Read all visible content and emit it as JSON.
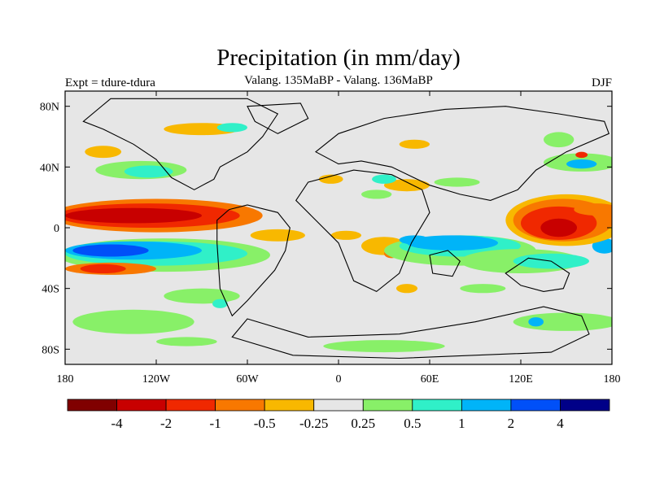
{
  "chart_data": {
    "type": "heatmap",
    "title": "Precipitation (in mm/day)",
    "subtitle": "Valang.  135MaBP - Valang.  136MaBP",
    "left_label": "Expt = tdure-tdura",
    "right_label": "DJF",
    "x_range": [
      -180,
      180
    ],
    "y_range": [
      -90,
      90
    ],
    "x_ticks": [
      {
        "value": -180,
        "label": "180"
      },
      {
        "value": -120,
        "label": "120W"
      },
      {
        "value": -60,
        "label": "60W"
      },
      {
        "value": 0,
        "label": "0"
      },
      {
        "value": 60,
        "label": "60E"
      },
      {
        "value": 120,
        "label": "120E"
      },
      {
        "value": 180,
        "label": "180"
      }
    ],
    "y_ticks": [
      {
        "value": 80,
        "label": "80N"
      },
      {
        "value": 40,
        "label": "40N"
      },
      {
        "value": 0,
        "label": "0"
      },
      {
        "value": -40,
        "label": "40S"
      },
      {
        "value": -80,
        "label": "80S"
      }
    ],
    "background_color": "#e6e6e6",
    "colorbar": {
      "colors": [
        "#800000",
        "#c80000",
        "#f02800",
        "#f87800",
        "#f8b800",
        "#e6e6e6",
        "#88f068",
        "#30f0c8",
        "#00b4f8",
        "#0050f8",
        "#000088"
      ],
      "labels": [
        "-4",
        "-2",
        "-1",
        "-0.5",
        "-0.25",
        "0.25",
        "0.5",
        "1",
        "2",
        "4"
      ]
    },
    "regions": [
      {
        "category": 4,
        "lon": -155,
        "lat": 50,
        "rlon": 12,
        "rlat": 4
      },
      {
        "category": 4,
        "lon": -90,
        "lat": 65,
        "rlon": 25,
        "rlat": 4
      },
      {
        "category": 7,
        "lon": -70,
        "lat": 66,
        "rlon": 10,
        "rlat": 3
      },
      {
        "category": 6,
        "lon": -130,
        "lat": 38,
        "rlon": 30,
        "rlat": 6
      },
      {
        "category": 7,
        "lon": -125,
        "lat": 37,
        "rlon": 16,
        "rlat": 4
      },
      {
        "category": 3,
        "lon": -120,
        "lat": 8,
        "rlon": 70,
        "rlat": 11
      },
      {
        "category": 2,
        "lon": -125,
        "lat": 8,
        "rlon": 60,
        "rlat": 8
      },
      {
        "category": 1,
        "lon": -135,
        "lat": 8,
        "rlon": 45,
        "rlat": 5
      },
      {
        "category": 6,
        "lon": -115,
        "lat": -18,
        "rlon": 70,
        "rlat": 11
      },
      {
        "category": 7,
        "lon": -120,
        "lat": -17,
        "rlon": 60,
        "rlat": 8
      },
      {
        "category": 8,
        "lon": -135,
        "lat": -15,
        "rlon": 45,
        "rlat": 6
      },
      {
        "category": 9,
        "lon": -150,
        "lat": -15,
        "rlon": 25,
        "rlat": 4
      },
      {
        "category": 3,
        "lon": -150,
        "lat": -27,
        "rlon": 30,
        "rlat": 4
      },
      {
        "category": 2,
        "lon": -155,
        "lat": -27,
        "rlon": 15,
        "rlat": 3
      },
      {
        "category": 6,
        "lon": -90,
        "lat": -45,
        "rlon": 25,
        "rlat": 5
      },
      {
        "category": 6,
        "lon": -135,
        "lat": -62,
        "rlon": 40,
        "rlat": 8
      },
      {
        "category": 7,
        "lon": -78,
        "lat": -50,
        "rlon": 5,
        "rlat": 3
      },
      {
        "category": 4,
        "lon": -40,
        "lat": -5,
        "rlon": 18,
        "rlat": 4
      },
      {
        "category": 4,
        "lon": 5,
        "lat": -5,
        "rlon": 10,
        "rlat": 3
      },
      {
        "category": 4,
        "lon": 30,
        "lat": -12,
        "rlon": 15,
        "rlat": 6
      },
      {
        "category": 3,
        "lon": 35,
        "lat": -17,
        "rlon": 5,
        "rlat": 3
      },
      {
        "category": 4,
        "lon": 45,
        "lat": 28,
        "rlon": 15,
        "rlat": 4
      },
      {
        "category": 4,
        "lon": -5,
        "lat": 32,
        "rlon": 8,
        "rlat": 3
      },
      {
        "category": 7,
        "lon": 30,
        "lat": 32,
        "rlon": 8,
        "rlat": 3
      },
      {
        "category": 6,
        "lon": 25,
        "lat": 22,
        "rlon": 10,
        "rlat": 3
      },
      {
        "category": 6,
        "lon": 78,
        "lat": 30,
        "rlon": 15,
        "rlat": 3
      },
      {
        "category": 4,
        "lon": 50,
        "lat": 55,
        "rlon": 10,
        "rlat": 3
      },
      {
        "category": 6,
        "lon": 80,
        "lat": -15,
        "rlon": 50,
        "rlat": 10
      },
      {
        "category": 7,
        "lon": 80,
        "lat": -12,
        "rlon": 40,
        "rlat": 7
      },
      {
        "category": 8,
        "lon": 75,
        "lat": -10,
        "rlon": 30,
        "rlat": 5
      },
      {
        "category": 8,
        "lon": 50,
        "lat": -8,
        "rlon": 10,
        "rlat": 3
      },
      {
        "category": 6,
        "lon": 120,
        "lat": -22,
        "rlon": 40,
        "rlat": 8
      },
      {
        "category": 7,
        "lon": 140,
        "lat": -22,
        "rlon": 25,
        "rlat": 5
      },
      {
        "category": 8,
        "lon": 175,
        "lat": -12,
        "rlon": 8,
        "rlat": 5
      },
      {
        "category": 4,
        "lon": 150,
        "lat": 5,
        "rlon": 40,
        "rlat": 17
      },
      {
        "category": 3,
        "lon": 148,
        "lat": 5,
        "rlon": 33,
        "rlat": 14
      },
      {
        "category": 2,
        "lon": 145,
        "lat": 3,
        "rlon": 25,
        "rlat": 11
      },
      {
        "category": 1,
        "lon": 145,
        "lat": 0,
        "rlon": 12,
        "rlat": 6
      },
      {
        "category": 3,
        "lon": 170,
        "lat": 12,
        "rlon": 15,
        "rlat": 4
      },
      {
        "category": 6,
        "lon": 160,
        "lat": 43,
        "rlon": 25,
        "rlat": 6
      },
      {
        "category": 8,
        "lon": 160,
        "lat": 42,
        "rlon": 10,
        "rlat": 3
      },
      {
        "category": 2,
        "lon": 160,
        "lat": 48,
        "rlon": 4,
        "rlat": 2
      },
      {
        "category": 6,
        "lon": 145,
        "lat": 58,
        "rlon": 10,
        "rlat": 5
      },
      {
        "category": 6,
        "lon": 150,
        "lat": -62,
        "rlon": 35,
        "rlat": 6
      },
      {
        "category": 8,
        "lon": 130,
        "lat": -62,
        "rlon": 5,
        "rlat": 3
      },
      {
        "category": 4,
        "lon": 45,
        "lat": -40,
        "rlon": 7,
        "rlat": 3
      },
      {
        "category": 6,
        "lon": 30,
        "lat": -78,
        "rlon": 40,
        "rlat": 4
      },
      {
        "category": 6,
        "lon": -100,
        "lat": -75,
        "rlon": 20,
        "rlat": 3
      },
      {
        "category": 6,
        "lon": 95,
        "lat": -40,
        "rlon": 15,
        "rlat": 3
      }
    ]
  }
}
